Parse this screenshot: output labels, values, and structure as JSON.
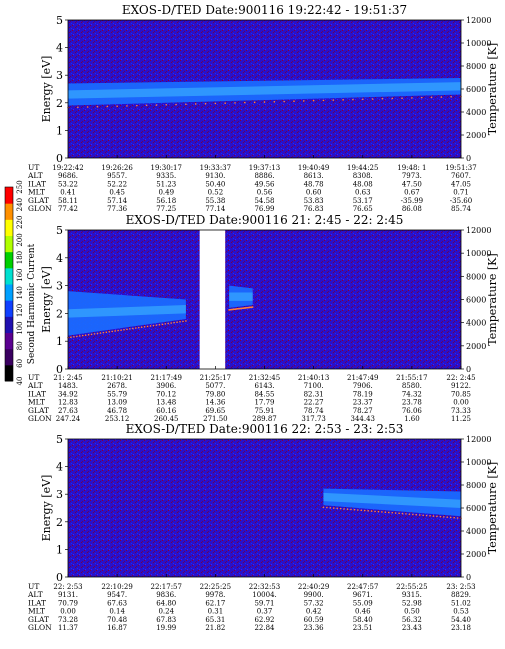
{
  "colorbar": {
    "label": "Second Harmonic Current",
    "ticks": [
      "40",
      "60",
      "80",
      "100",
      "120",
      "140",
      "160",
      "180",
      "200",
      "220",
      "240",
      "250"
    ],
    "colors": [
      "#000000",
      "#3a0060",
      "#5a0090",
      "#2010b0",
      "#1040ff",
      "#00a0ff",
      "#00e0d0",
      "#00d000",
      "#b0ff00",
      "#ffff00",
      "#ff9000",
      "#ff0000"
    ]
  },
  "chart_data": [
    {
      "type": "heatmap",
      "title": "EXOS-D/TED   Date:900116  19:22:42 - 19:51:37",
      "ylabel": "Energy [eV]",
      "y2label": "Temperature [K]",
      "ylim": [
        0,
        5
      ],
      "y2lim": [
        0,
        12000
      ],
      "yticks": [
        "0",
        "1",
        "2",
        "3",
        "4",
        "5"
      ],
      "y2ticks": [
        "0",
        "2000",
        "4000",
        "6000",
        "8000",
        "10000",
        "12000"
      ],
      "band": {
        "present": true,
        "from_frac": 0,
        "to_frac": 1,
        "lo_start": 1.9,
        "lo_end": 2.3,
        "hi_start": 2.7,
        "hi_end": 2.9
      },
      "gap": null,
      "table": {
        "rows": [
          {
            "label": "UT",
            "values": [
              "19:22:42",
              "19:26:26",
              "19:30:17",
              "19:33:37",
              "19:37:13",
              "19:40:49",
              "19:44:25",
              "19:48: 1",
              "19:51:37"
            ]
          },
          {
            "label": "ALT",
            "values": [
              "9686.",
              "9557.",
              "9335.",
              "9130.",
              "8886.",
              "8613.",
              "8308.",
              "7973.",
              "7607."
            ]
          },
          {
            "label": "ILAT",
            "values": [
              "53.22",
              "52.22",
              "51.23",
              "50.40",
              "49.56",
              "48.78",
              "48.08",
              "47.50",
              "47.05"
            ]
          },
          {
            "label": "MLT",
            "values": [
              "0.41",
              "0.45",
              "0.49",
              "0.52",
              "0.56",
              "0.60",
              "0.63",
              "0.67",
              "0.71"
            ]
          },
          {
            "label": "GLAT",
            "values": [
              "58.11",
              "57.14",
              "56.18",
              "55.38",
              "54.58",
              "53.83",
              "53.17",
              "-35.99",
              "-35.60"
            ]
          },
          {
            "label": "GLON",
            "values": [
              "77.42",
              "77.36",
              "77.25",
              "77.14",
              "76.99",
              "76.83",
              "76.65",
              "86.08",
              "85.74"
            ]
          }
        ]
      }
    },
    {
      "type": "heatmap",
      "title": "EXOS-D/TED   Date:900116  21: 2:45 - 22: 2:45",
      "ylabel": "Energy [eV]",
      "y2label": "Temperature [K]",
      "ylim": [
        0,
        5
      ],
      "y2lim": [
        0,
        12000
      ],
      "yticks": [
        "0",
        "1",
        "2",
        "3",
        "4",
        "5"
      ],
      "y2ticks": [
        "0",
        "2000",
        "4000",
        "6000",
        "8000",
        "10000",
        "12000"
      ],
      "band": {
        "present": true,
        "from_frac": 0,
        "to_frac": 0.3,
        "lo_start": 1.2,
        "lo_end": 1.8,
        "hi_start": 2.8,
        "hi_end": 2.5
      },
      "band2": {
        "present": true,
        "from_frac": 0.41,
        "to_frac": 0.47,
        "lo_start": 2.2,
        "lo_end": 2.3,
        "hi_start": 3.0,
        "hi_end": 2.9
      },
      "gap": {
        "from_frac": 0.335,
        "to_frac": 0.4
      },
      "table": {
        "rows": [
          {
            "label": "UT",
            "values": [
              "21: 2:45",
              "21:10:21",
              "21:17:49",
              "21:25:17",
              "21:32:45",
              "21:40:13",
              "21:47:49",
              "21:55:17",
              "22: 2:45"
            ]
          },
          {
            "label": "ALT",
            "values": [
              "1483.",
              "2678.",
              "3906.",
              "5077.",
              "6143.",
              "7100.",
              "7906.",
              "8580.",
              "9122."
            ]
          },
          {
            "label": "ILAT",
            "values": [
              "34.92",
              "55.79",
              "70.12",
              "79.80",
              "84.55",
              "82.31",
              "78.19",
              "74.32",
              "70.85"
            ]
          },
          {
            "label": "MLT",
            "values": [
              "12.83",
              "13.09",
              "13.48",
              "14.36",
              "17.79",
              "22.27",
              "23.37",
              "23.78",
              "0.00"
            ]
          },
          {
            "label": "GLAT",
            "values": [
              "27.63",
              "46.78",
              "60.16",
              "69.65",
              "75.91",
              "78.74",
              "78.27",
              "76.06",
              "73.33"
            ]
          },
          {
            "label": "GLON",
            "values": [
              "247.24",
              "253.12",
              "260.45",
              "271.50",
              "289.87",
              "317.73",
              "344.43",
              "1.60",
              "11.25"
            ]
          }
        ]
      }
    },
    {
      "type": "heatmap",
      "title": "EXOS-D/TED   Date:900116  22: 2:53 - 23: 2:53",
      "ylabel": "Energy [eV]",
      "y2label": "Temperature [K]",
      "ylim": [
        0,
        5
      ],
      "y2lim": [
        0,
        12000
      ],
      "yticks": [
        "0",
        "1",
        "2",
        "3",
        "4",
        "5"
      ],
      "y2ticks": [
        "0",
        "2000",
        "4000",
        "6000",
        "8000",
        "10000",
        "12000"
      ],
      "band": {
        "present": true,
        "from_frac": 0.65,
        "to_frac": 1,
        "lo_start": 2.6,
        "lo_end": 2.2,
        "hi_start": 3.2,
        "hi_end": 3.1
      },
      "gap": null,
      "table": {
        "rows": [
          {
            "label": "UT",
            "values": [
              "22: 2:53",
              "22:10:29",
              "22:17:57",
              "22:25:25",
              "22:32:53",
              "22:40:29",
              "22:47:57",
              "22:55:25",
              "23: 2:53"
            ]
          },
          {
            "label": "ALT",
            "values": [
              "9131.",
              "9547.",
              "9836.",
              "9978.",
              "10004.",
              "9900.",
              "9671.",
              "9315.",
              "8829."
            ]
          },
          {
            "label": "ILAT",
            "values": [
              "70.79",
              "67.63",
              "64.80",
              "62.17",
              "59.71",
              "57.32",
              "55.09",
              "52.98",
              "51.02"
            ]
          },
          {
            "label": "MLT",
            "values": [
              "0.00",
              "0.14",
              "0.24",
              "0.31",
              "0.37",
              "0.42",
              "0.46",
              "0.50",
              "0.53"
            ]
          },
          {
            "label": "GLAT",
            "values": [
              "73.28",
              "70.48",
              "67.83",
              "65.31",
              "62.92",
              "60.59",
              "58.40",
              "56.32",
              "54.40"
            ]
          },
          {
            "label": "GLON",
            "values": [
              "11.37",
              "16.87",
              "19.99",
              "21.82",
              "22.84",
              "23.36",
              "23.51",
              "23.43",
              "23.18"
            ]
          }
        ]
      }
    }
  ]
}
